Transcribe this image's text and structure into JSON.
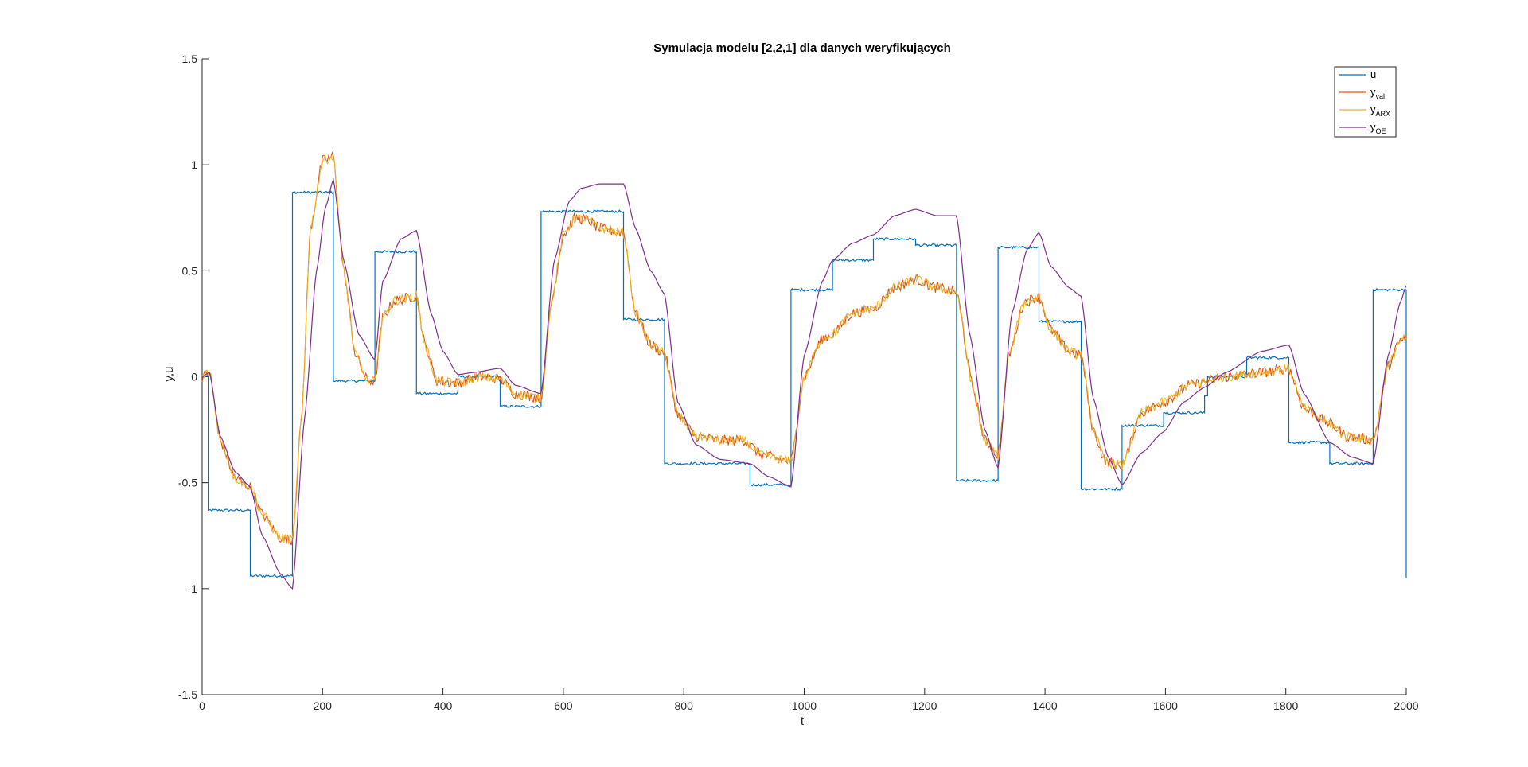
{
  "chart_data": {
    "type": "line",
    "title": "Symulacja modelu [2,2,1] dla danych weryfikujących",
    "xlabel": "t",
    "ylabel": "y,u",
    "xlim": [
      0,
      2000
    ],
    "ylim": [
      -1.5,
      1.5
    ],
    "xticks": [
      "0",
      "200",
      "400",
      "600",
      "800",
      "1000",
      "1200",
      "1400",
      "1600",
      "1800",
      "2000"
    ],
    "yticks": [
      "-1.5",
      "-1",
      "-0.5",
      "0",
      "0.5",
      "1",
      "1.5"
    ],
    "grid": false,
    "legend_position": "top-right",
    "legend": [
      {
        "base": "u",
        "sub": ""
      },
      {
        "base": "y",
        "sub": "val"
      },
      {
        "base": "y",
        "sub": "ARX"
      },
      {
        "base": "y",
        "sub": "OE"
      }
    ],
    "colors": {
      "u": "#0072BD",
      "y_val": "#D95319",
      "y_ARX": "#EDB120",
      "y_OE": "#7E2F8E"
    },
    "u_steps": [
      [
        0,
        0
      ],
      [
        10,
        -0.63
      ],
      [
        80,
        -0.94
      ],
      [
        150,
        0.87
      ],
      [
        218,
        -0.02
      ],
      [
        287,
        0.59
      ],
      [
        356,
        -0.08
      ],
      [
        425,
        0.0
      ],
      [
        495,
        -0.14
      ],
      [
        563,
        0.78
      ],
      [
        700,
        0.27
      ],
      [
        768,
        -0.41
      ],
      [
        910,
        -0.51
      ],
      [
        978,
        0.41
      ],
      [
        1047,
        0.55
      ],
      [
        1115,
        0.65
      ],
      [
        1185,
        0.62
      ],
      [
        1253,
        -0.49
      ],
      [
        1322,
        0.61
      ],
      [
        1390,
        0.26
      ],
      [
        1460,
        -0.53
      ],
      [
        1528,
        -0.23
      ],
      [
        1597,
        -0.17
      ],
      [
        1665,
        -0.09
      ],
      [
        1670,
        0.0
      ],
      [
        1735,
        0.09
      ],
      [
        1805,
        -0.31
      ],
      [
        1873,
        -0.41
      ],
      [
        1945,
        0.41
      ],
      [
        2000,
        -0.95
      ]
    ],
    "y_val_points": [
      [
        0,
        0.0
      ],
      [
        12,
        0.02
      ],
      [
        30,
        -0.3
      ],
      [
        55,
        -0.48
      ],
      [
        80,
        -0.52
      ],
      [
        100,
        -0.65
      ],
      [
        130,
        -0.76
      ],
      [
        150,
        -0.77
      ],
      [
        165,
        -0.2
      ],
      [
        180,
        0.7
      ],
      [
        200,
        1.02
      ],
      [
        218,
        1.04
      ],
      [
        235,
        0.5
      ],
      [
        255,
        0.1
      ],
      [
        275,
        -0.02
      ],
      [
        287,
        -0.02
      ],
      [
        300,
        0.28
      ],
      [
        320,
        0.36
      ],
      [
        356,
        0.38
      ],
      [
        370,
        0.15
      ],
      [
        390,
        -0.02
      ],
      [
        425,
        -0.03
      ],
      [
        460,
        0.0
      ],
      [
        495,
        -0.01
      ],
      [
        520,
        -0.08
      ],
      [
        563,
        -0.1
      ],
      [
        580,
        0.35
      ],
      [
        600,
        0.67
      ],
      [
        620,
        0.75
      ],
      [
        640,
        0.74
      ],
      [
        660,
        0.7
      ],
      [
        700,
        0.68
      ],
      [
        720,
        0.3
      ],
      [
        745,
        0.15
      ],
      [
        768,
        0.11
      ],
      [
        790,
        -0.18
      ],
      [
        820,
        -0.28
      ],
      [
        860,
        -0.3
      ],
      [
        900,
        -0.3
      ],
      [
        930,
        -0.37
      ],
      [
        978,
        -0.4
      ],
      [
        1000,
        0.0
      ],
      [
        1030,
        0.18
      ],
      [
        1047,
        0.2
      ],
      [
        1080,
        0.3
      ],
      [
        1115,
        0.32
      ],
      [
        1150,
        0.42
      ],
      [
        1185,
        0.46
      ],
      [
        1220,
        0.42
      ],
      [
        1253,
        0.4
      ],
      [
        1280,
        -0.05
      ],
      [
        1300,
        -0.3
      ],
      [
        1322,
        -0.37
      ],
      [
        1340,
        0.1
      ],
      [
        1365,
        0.35
      ],
      [
        1390,
        0.38
      ],
      [
        1410,
        0.22
      ],
      [
        1440,
        0.12
      ],
      [
        1460,
        0.1
      ],
      [
        1480,
        -0.25
      ],
      [
        1500,
        -0.4
      ],
      [
        1528,
        -0.42
      ],
      [
        1560,
        -0.17
      ],
      [
        1597,
        -0.12
      ],
      [
        1640,
        -0.04
      ],
      [
        1700,
        0.0
      ],
      [
        1760,
        0.02
      ],
      [
        1805,
        0.04
      ],
      [
        1830,
        -0.15
      ],
      [
        1873,
        -0.22
      ],
      [
        1900,
        -0.28
      ],
      [
        1945,
        -0.3
      ],
      [
        1970,
        0.05
      ],
      [
        1990,
        0.17
      ],
      [
        2000,
        0.18
      ]
    ],
    "y_oe_points": [
      [
        0,
        0.0
      ],
      [
        12,
        0.02
      ],
      [
        30,
        -0.28
      ],
      [
        55,
        -0.45
      ],
      [
        80,
        -0.52
      ],
      [
        100,
        -0.75
      ],
      [
        130,
        -0.93
      ],
      [
        150,
        -1.0
      ],
      [
        170,
        -0.2
      ],
      [
        190,
        0.5
      ],
      [
        205,
        0.8
      ],
      [
        218,
        0.93
      ],
      [
        235,
        0.55
      ],
      [
        260,
        0.2
      ],
      [
        287,
        0.08
      ],
      [
        300,
        0.45
      ],
      [
        330,
        0.65
      ],
      [
        356,
        0.69
      ],
      [
        380,
        0.3
      ],
      [
        400,
        0.12
      ],
      [
        425,
        0.01
      ],
      [
        450,
        0.02
      ],
      [
        495,
        0.04
      ],
      [
        520,
        -0.04
      ],
      [
        563,
        -0.08
      ],
      [
        585,
        0.55
      ],
      [
        610,
        0.83
      ],
      [
        630,
        0.89
      ],
      [
        660,
        0.91
      ],
      [
        700,
        0.91
      ],
      [
        720,
        0.7
      ],
      [
        745,
        0.5
      ],
      [
        768,
        0.39
      ],
      [
        790,
        -0.12
      ],
      [
        820,
        -0.32
      ],
      [
        860,
        -0.39
      ],
      [
        910,
        -0.41
      ],
      [
        940,
        -0.47
      ],
      [
        978,
        -0.52
      ],
      [
        1000,
        0.1
      ],
      [
        1030,
        0.45
      ],
      [
        1047,
        0.55
      ],
      [
        1080,
        0.63
      ],
      [
        1115,
        0.67
      ],
      [
        1150,
        0.76
      ],
      [
        1185,
        0.79
      ],
      [
        1220,
        0.76
      ],
      [
        1253,
        0.76
      ],
      [
        1275,
        0.2
      ],
      [
        1300,
        -0.25
      ],
      [
        1322,
        -0.43
      ],
      [
        1345,
        0.3
      ],
      [
        1370,
        0.6
      ],
      [
        1390,
        0.68
      ],
      [
        1410,
        0.52
      ],
      [
        1440,
        0.42
      ],
      [
        1460,
        0.38
      ],
      [
        1480,
        -0.1
      ],
      [
        1505,
        -0.38
      ],
      [
        1528,
        -0.51
      ],
      [
        1560,
        -0.36
      ],
      [
        1597,
        -0.26
      ],
      [
        1630,
        -0.12
      ],
      [
        1665,
        -0.05
      ],
      [
        1700,
        0.02
      ],
      [
        1760,
        0.12
      ],
      [
        1805,
        0.15
      ],
      [
        1830,
        -0.08
      ],
      [
        1873,
        -0.31
      ],
      [
        1910,
        -0.38
      ],
      [
        1945,
        -0.41
      ],
      [
        1970,
        0.1
      ],
      [
        1990,
        0.35
      ],
      [
        2000,
        0.43
      ]
    ]
  }
}
